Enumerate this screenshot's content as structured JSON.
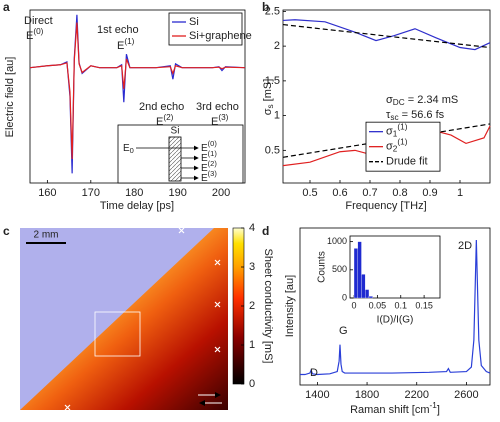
{
  "chart_data": [
    {
      "panel": "a",
      "type": "line",
      "xlabel": "Time delay [ps]",
      "ylabel": "Electric field [au]",
      "xlim": [
        156,
        205.5
      ],
      "ylim": [
        -1.2,
        0.6
      ],
      "xticks": [
        160,
        170,
        180,
        190,
        200
      ],
      "legend": "upper right",
      "x": [
        156,
        160,
        163,
        164.5,
        165.2,
        165.7,
        166.2,
        166.8,
        167.3,
        168,
        170,
        172,
        176,
        177.1,
        177.6,
        178.2,
        179,
        185,
        188.3,
        188.9,
        189.5,
        191,
        198,
        199.5,
        200.2,
        201,
        205.5
      ],
      "series": [
        {
          "name": "Si",
          "color": "#2b2bd0",
          "values": [
            0,
            0.02,
            0.03,
            0.06,
            -0.3,
            -1.1,
            0.1,
            0.55,
            0.05,
            -0.06,
            0.02,
            0,
            0,
            0.03,
            -0.36,
            0.14,
            0,
            0,
            0.02,
            -0.12,
            0.04,
            0,
            0,
            0.01,
            -0.03,
            0.01,
            0
          ]
        },
        {
          "name": "Si+graphene",
          "color": "#e02020",
          "values": [
            0,
            0.02,
            0.03,
            0.05,
            -0.25,
            -0.95,
            0.08,
            0.47,
            0.04,
            -0.05,
            0.02,
            0,
            0,
            0.02,
            -0.22,
            0.09,
            0,
            0,
            0.01,
            -0.06,
            0.02,
            0,
            0,
            0.005,
            -0.01,
            0.005,
            0
          ]
        }
      ],
      "annotations": [
        "Direct",
        {
          "text": "E",
          "sup": "(0)"
        },
        "1st echo",
        {
          "text": "E",
          "sup": "(1)"
        },
        "2nd echo",
        {
          "text": "E",
          "sup": "(2)"
        },
        "3rd echo",
        {
          "text": "E",
          "sup": "(3)"
        }
      ],
      "inset": {
        "title": "Si",
        "input": {
          "text": "E",
          "sub": "0"
        },
        "outputs": [
          {
            "text": "E",
            "sup": "(0)"
          },
          {
            "text": "E",
            "sup": "(1)"
          },
          {
            "text": "E",
            "sup": "(2)"
          },
          {
            "text": "E",
            "sup": "(3)"
          }
        ]
      }
    },
    {
      "panel": "b",
      "type": "line",
      "xlabel": "Frequency [THz]",
      "ylabel": {
        "text": "σ",
        "sub": "s",
        "after": " [mS]"
      },
      "xlim": [
        0.41,
        1.1
      ],
      "ylim": [
        0.03,
        2.52
      ],
      "xticks": [
        0.5,
        0.6,
        0.7,
        0.8,
        0.9,
        1
      ],
      "yticks": [
        0.5,
        1,
        1.5,
        2,
        2.5
      ],
      "legend": "center right",
      "series": [
        {
          "name": {
            "text": "σ",
            "sub": "1",
            "sup": "(1)"
          },
          "color": "#2f2fcc",
          "x": [
            0.41,
            0.45,
            0.55,
            0.65,
            0.72,
            0.78,
            0.85,
            0.92,
            1.0,
            1.05,
            1.1
          ],
          "values": [
            2.37,
            2.38,
            2.35,
            2.2,
            2.08,
            2.15,
            2.25,
            2.12,
            1.98,
            1.95,
            2.05
          ]
        },
        {
          "name": {
            "text": "σ",
            "sub": "2",
            "sup": "(1)"
          },
          "color": "#e02020",
          "x": [
            0.41,
            0.5,
            0.6,
            0.65,
            0.72,
            0.8,
            0.9,
            0.97,
            1.02,
            1.08,
            1.1
          ],
          "values": [
            0.28,
            0.33,
            0.48,
            0.5,
            0.42,
            0.5,
            0.8,
            0.72,
            0.6,
            0.68,
            0.85
          ]
        },
        {
          "name": "Drude fit",
          "color": "#000000",
          "linestyle": "dashed",
          "x": [
            0.41,
            1.1,
            null,
            0.41,
            1.1
          ],
          "values": [
            2.31,
            1.98,
            null,
            0.4,
            0.88
          ]
        }
      ],
      "annotations": [
        {
          "text": "σ",
          "sub": "DC",
          "after": " = 2.34 mS"
        },
        {
          "text": "τ",
          "sub": "sc",
          "after": " = 56.6 fs"
        }
      ]
    },
    {
      "panel": "c",
      "type": "heatmap",
      "colorbar_label": "Sheet conductivity [mS]",
      "clim": [
        0,
        4
      ],
      "cticks": [
        0,
        1,
        2,
        3,
        4
      ],
      "scale_bar": "2 mm"
    },
    {
      "panel": "d",
      "type": "line",
      "xlabel": {
        "text": "Raman shift [cm",
        "sup": "-1",
        "after": "]"
      },
      "ylabel": "Intensity [au]",
      "xlim": [
        1260,
        2790
      ],
      "ylim": [
        0,
        1.05
      ],
      "xticks": [
        1400,
        1800,
        2200,
        2600
      ],
      "color": "#2a3fd8",
      "x": [
        1260,
        1300,
        1340,
        1350,
        1360,
        1400,
        1500,
        1560,
        1575,
        1582,
        1590,
        1600,
        1620,
        2000,
        2300,
        2440,
        2455,
        2470,
        2600,
        2640,
        2660,
        2672,
        2680,
        2688,
        2700,
        2720,
        2760,
        2790
      ],
      "values": [
        0.07,
        0.07,
        0.08,
        0.1,
        0.075,
        0.07,
        0.075,
        0.09,
        0.16,
        0.27,
        0.14,
        0.09,
        0.08,
        0.08,
        0.085,
        0.09,
        0.11,
        0.085,
        0.09,
        0.12,
        0.3,
        0.7,
        0.97,
        0.7,
        0.3,
        0.13,
        0.09,
        0.08
      ],
      "annotations": [
        "D",
        "G",
        "2D"
      ],
      "inset": {
        "type": "histogram",
        "bins": [
          0,
          0.008,
          0.016,
          0.024,
          0.032,
          0.04
        ],
        "counts": [
          880,
          1000,
          420,
          150,
          30
        ],
        "xlim": [
          -0.0086,
          0.184
        ],
        "ylim": [
          0,
          1100
        ],
        "xticks": [
          0,
          0.05,
          0.1,
          0.15
        ],
        "yticks": [
          0,
          500,
          1000
        ],
        "xlabel": "I(D)/I(G)",
        "ylabel": "Counts",
        "color": "#1f2ad0"
      }
    }
  ]
}
